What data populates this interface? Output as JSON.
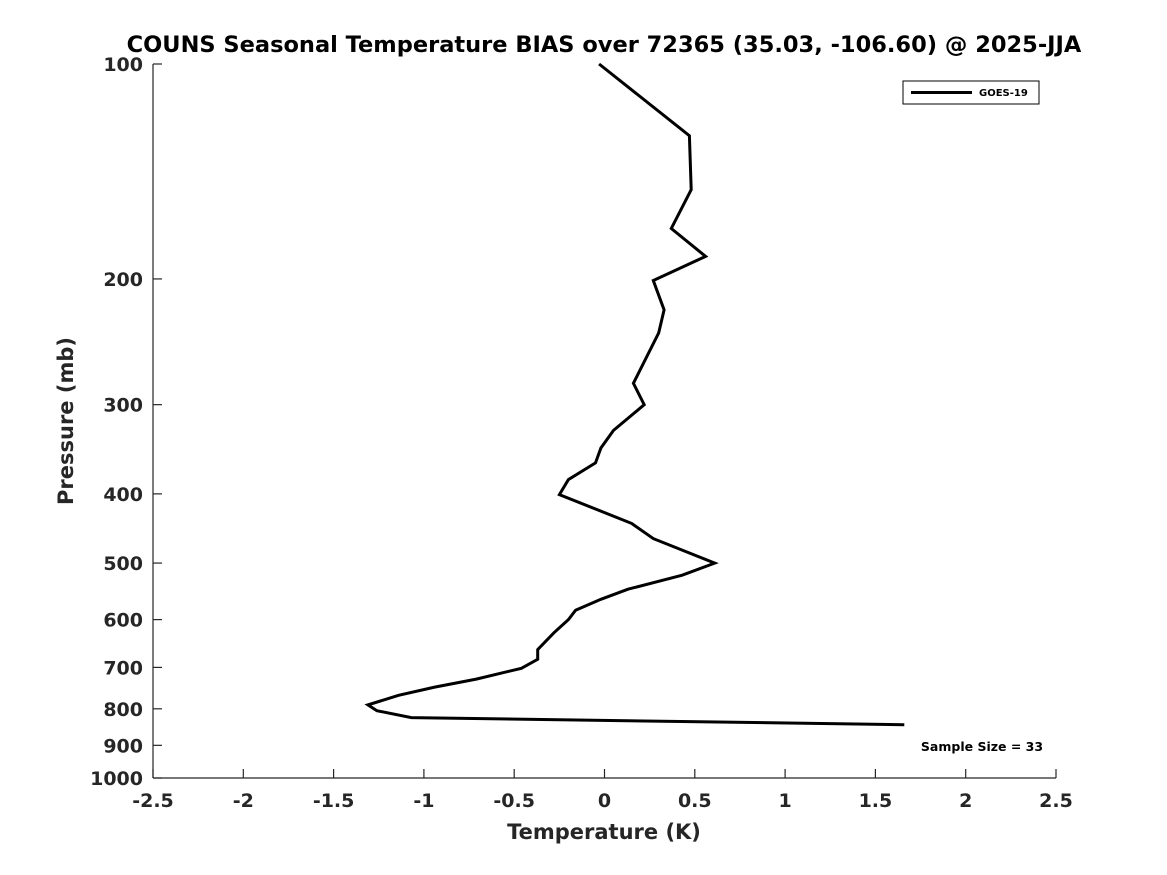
{
  "chart_data": {
    "type": "line",
    "title": "COUNS Seasonal Temperature BIAS over 72365 (35.03, -106.60) @ 2025-JJA",
    "xlabel": "Temperature (K)",
    "ylabel": "Pressure (mb)",
    "xlim": [
      -2.5,
      2.5
    ],
    "ylim": [
      100,
      1000
    ],
    "y_scale": "log",
    "y_reversed": true,
    "x_ticks": [
      -2.5,
      -2,
      -1.5,
      -1,
      -0.5,
      0,
      0.5,
      1,
      1.5,
      2,
      2.5
    ],
    "x_tick_labels": [
      "-2.5",
      "-2",
      "-1.5",
      "-1",
      "-0.5",
      "0",
      "0.5",
      "1",
      "1.5",
      "2",
      "2.5"
    ],
    "y_ticks": [
      100,
      200,
      300,
      400,
      500,
      600,
      700,
      800,
      900,
      1000
    ],
    "y_tick_labels": [
      "100",
      "200",
      "300",
      "400",
      "500",
      "600",
      "700",
      "800",
      "900",
      "1000"
    ],
    "grid": false,
    "legend_position": "top-right",
    "annotation": "Sample Size = 33",
    "series": [
      {
        "name": "GOES-19",
        "color": "#000000",
        "points": [
          {
            "x": -0.03,
            "y": 100
          },
          {
            "x": 0.47,
            "y": 126
          },
          {
            "x": 0.48,
            "y": 150
          },
          {
            "x": 0.37,
            "y": 170
          },
          {
            "x": 0.56,
            "y": 186
          },
          {
            "x": 0.27,
            "y": 201
          },
          {
            "x": 0.33,
            "y": 221
          },
          {
            "x": 0.3,
            "y": 238
          },
          {
            "x": 0.16,
            "y": 280
          },
          {
            "x": 0.22,
            "y": 300
          },
          {
            "x": 0.05,
            "y": 326
          },
          {
            "x": -0.02,
            "y": 345
          },
          {
            "x": -0.05,
            "y": 362
          },
          {
            "x": -0.2,
            "y": 382
          },
          {
            "x": -0.25,
            "y": 401
          },
          {
            "x": 0.15,
            "y": 440
          },
          {
            "x": 0.27,
            "y": 462
          },
          {
            "x": 0.47,
            "y": 484
          },
          {
            "x": 0.61,
            "y": 500
          },
          {
            "x": 0.43,
            "y": 520
          },
          {
            "x": 0.13,
            "y": 544
          },
          {
            "x": -0.02,
            "y": 562
          },
          {
            "x": -0.16,
            "y": 582
          },
          {
            "x": -0.2,
            "y": 600
          },
          {
            "x": -0.28,
            "y": 626
          },
          {
            "x": -0.37,
            "y": 661
          },
          {
            "x": -0.37,
            "y": 682
          },
          {
            "x": -0.46,
            "y": 702
          },
          {
            "x": -0.71,
            "y": 727
          },
          {
            "x": -0.94,
            "y": 746
          },
          {
            "x": -1.14,
            "y": 766
          },
          {
            "x": -1.31,
            "y": 790
          },
          {
            "x": -1.26,
            "y": 805
          },
          {
            "x": -1.07,
            "y": 823
          },
          {
            "x": 1.66,
            "y": 842
          }
        ]
      }
    ]
  }
}
